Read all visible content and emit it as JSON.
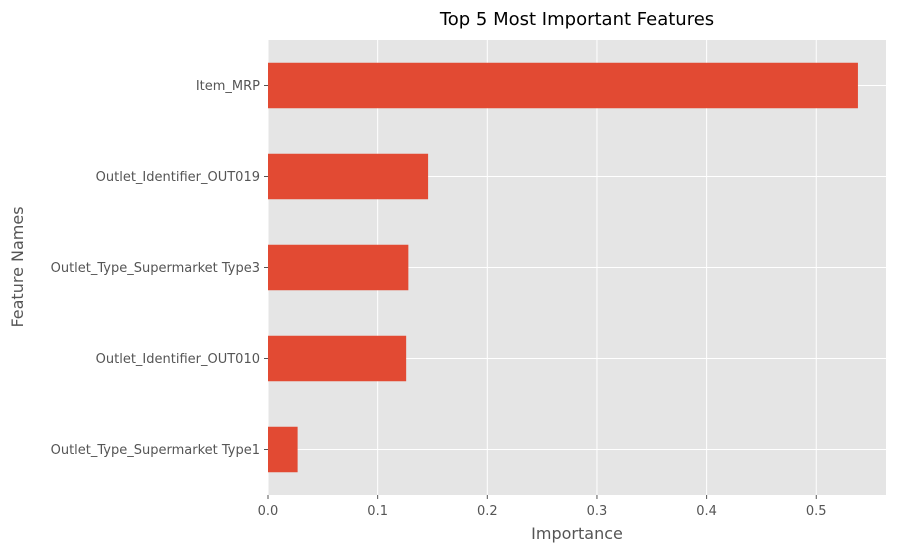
{
  "chart_data": {
    "type": "bar",
    "orientation": "horizontal",
    "title": "Top 5 Most Important Features",
    "xlabel": "Importance",
    "ylabel": "Feature Names",
    "categories": [
      "Item_MRP",
      "Outlet_Identifier_OUT019",
      "Outlet_Type_Supermarket Type3",
      "Outlet_Identifier_OUT010",
      "Outlet_Type_Supermarket Type1"
    ],
    "values": [
      0.538,
      0.146,
      0.128,
      0.126,
      0.027
    ],
    "xlim": [
      0,
      0.5636
    ],
    "xticks": [
      0.0,
      0.1,
      0.2,
      0.3,
      0.4,
      0.5
    ],
    "xtick_labels": [
      "0.0",
      "0.1",
      "0.2",
      "0.3",
      "0.4",
      "0.5"
    ],
    "grid": true,
    "legend": "none",
    "colors": {
      "bar": "#E24A33",
      "plot_background": "#E5E5E5",
      "grid": "#FFFFFF",
      "text": "#555555",
      "title": "#000000"
    }
  }
}
